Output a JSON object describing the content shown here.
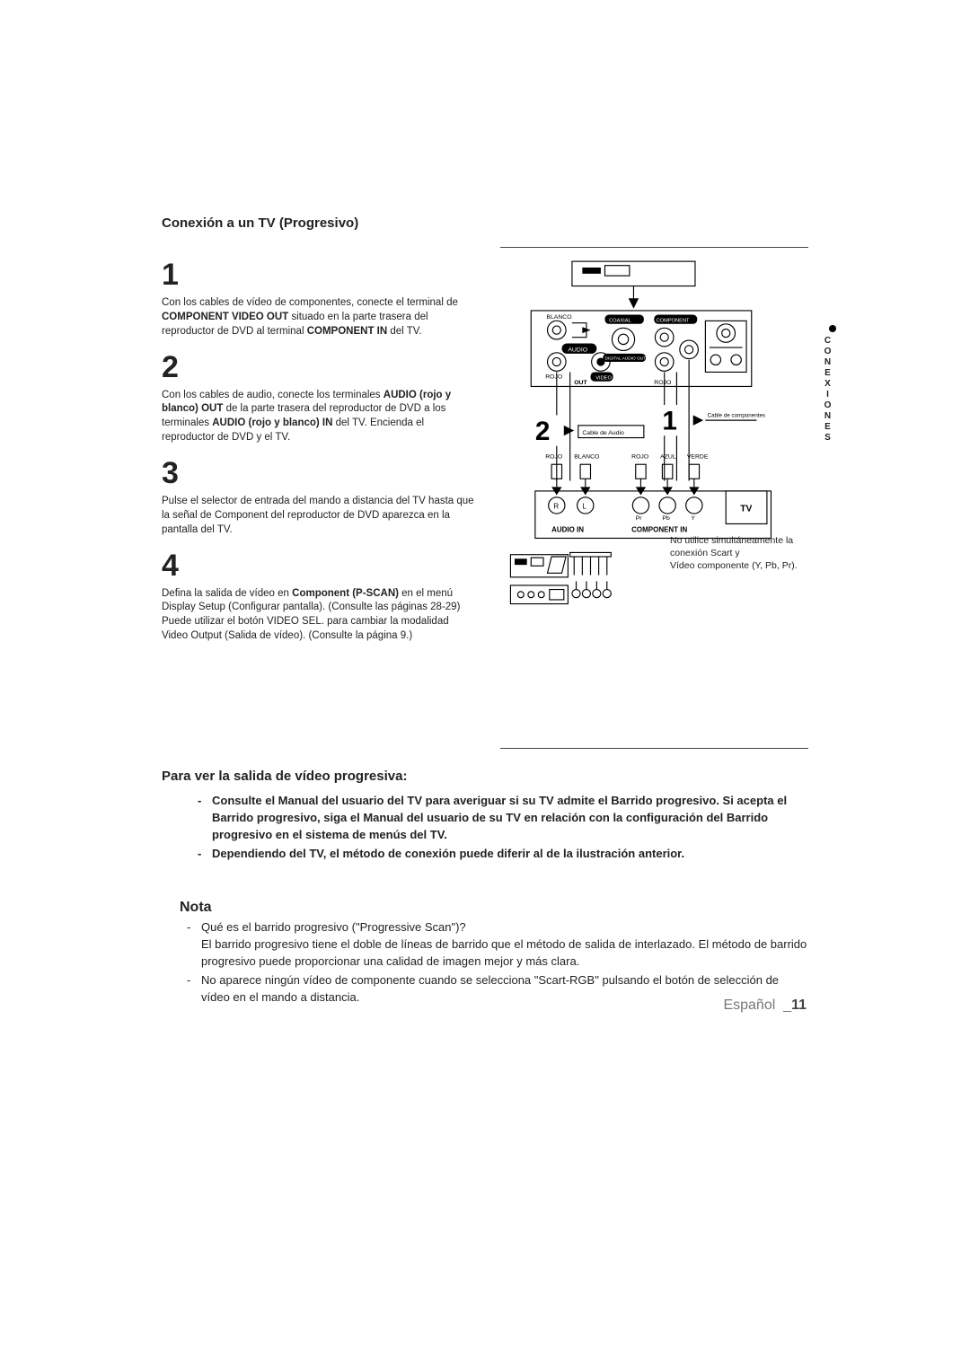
{
  "title": "Conexión a un TV (Progresivo)",
  "sideTab": "CONEXIONES",
  "steps": {
    "s1": {
      "num": "1",
      "html": "Con los cables de vídeo de componentes, conecte el terminal de <b>COMPONENT VIDEO OUT</b> situado en la parte trasera del reproductor de DVD al terminal <b>COMPONENT IN</b> del TV."
    },
    "s2": {
      "num": "2",
      "html": "Con los cables de audio, conecte los terminales <b>AUDIO (rojo y blanco) OUT</b> de la parte trasera del reproductor de DVD a los terminales <b>AUDIO (rojo y blanco) IN</b> del TV. Encienda el reproductor de DVD y el TV."
    },
    "s3": {
      "num": "3",
      "html": "Pulse el selector de entrada del mando a distancia del TV hasta que la señal de Component del reproductor de DVD aparezca en la pantalla del TV."
    },
    "s4": {
      "num": "4",
      "html": "Defina la salida de vídeo en <b>Component (P-SCAN)</b> en el menú Display Setup (Configurar pantalla). (Consulte las páginas 28-29) Puede utilizar el botón VIDEO SEL. para cambiar la modalidad Video Output (Salida de vídeo). (Consulte la página 9.)"
    }
  },
  "diagramLabels": {
    "blancoTop": "BLANCO",
    "rojoTop": "ROJO",
    "audio": "AUDIO",
    "coaxial": "COAXIAL",
    "digitalAudioOut": "DIGITAL AUDIO OUT",
    "component": "COMPONENT",
    "out": "OUT",
    "video": "VIDEO",
    "rojoMid": "ROJO",
    "cableAudio": "Cable de Audio",
    "cableComp": "Cable de componentes",
    "big1": "1",
    "big2": "2",
    "rojoB": "ROJO",
    "blancoB": "BLANCO",
    "rojoC": "ROJO",
    "azul": "AZUL",
    "verde": "VERDE",
    "r": "R",
    "l": "L",
    "pr": "Pr",
    "pb": "Pb",
    "y": "Y",
    "audioIn": "AUDIO IN",
    "componentIn": "COMPONENT IN",
    "tv": "TV"
  },
  "diagramNote": {
    "l1": "No utilice simultáneamente la",
    "l2": "conexión Scart y",
    "l3": "Vídeo componente (Y, Pb, Pr)."
  },
  "progTitle": "Para ver la salida de vídeo progresiva:",
  "progBullets": [
    "<b>Consulte el Manual del usuario del TV para averiguar si su TV admite el Barrido progresivo. Si acepta el Barrido progresivo, siga el Manual del usuario de su TV en relación con la configuración del Barrido progresivo en el sistema de menús del TV.</b>",
    "<b>Dependiendo del TV, el método de conexión puede diferir al de la ilustración anterior.</b>"
  ],
  "notaTitle": "Nota",
  "notaBullets": [
    "Qué es el barrido progresivo (\"Progressive Scan\")?<br>El barrido progresivo tiene el doble de líneas de barrido que el método de salida de interlazado. El método de barrido progresivo puede proporcionar una calidad de imagen mejor y más clara.",
    "No aparece ningún vídeo de componente cuando se selecciona \"Scart-RGB\" pulsando el botón de selección de vídeo en el mando a distancia."
  ],
  "footer": {
    "lang": "Español",
    "page": "11"
  },
  "colors": {
    "text": "#222222",
    "gray": "#777777",
    "line": "#444444",
    "black": "#000000",
    "white": "#ffffff"
  }
}
